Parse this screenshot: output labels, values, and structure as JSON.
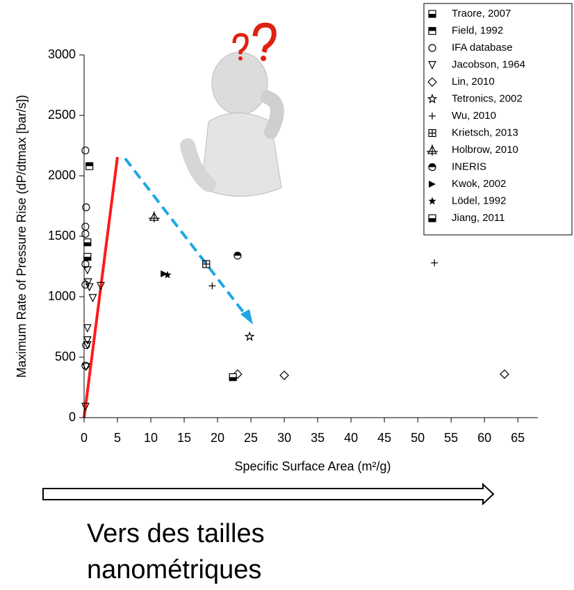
{
  "chart_data": {
    "type": "scatter",
    "x_label": "Specific Surface Area (m²/g)",
    "y_label": "Maximum Rate of Pressure Rise (dP/dtmax [bar/s])",
    "xlim": [
      0,
      68
    ],
    "ylim": [
      0,
      3000
    ],
    "xticks": [
      0,
      5,
      10,
      15,
      20,
      25,
      30,
      35,
      40,
      45,
      50,
      55,
      60,
      65
    ],
    "yticks": [
      0,
      500,
      1000,
      1500,
      2000,
      2500,
      3000
    ],
    "legend": "top-right",
    "series": [
      {
        "name": "Traore, 2007",
        "color": "#000000",
        "marker": "square-half-bottom",
        "x": [
          0.5,
          0.5
        ],
        "values": [
          1450,
          1330
        ]
      },
      {
        "name": "Field, 1992",
        "color": "#000000",
        "marker": "square-half-top",
        "x": [
          0.8
        ],
        "values": [
          2080
        ]
      },
      {
        "name": "IFA database",
        "color": "#000000",
        "marker": "circle",
        "x": [
          0.2,
          0.3,
          0.2,
          0.2,
          0.2,
          0.2,
          0.3,
          0.2
        ],
        "values": [
          2210,
          1740,
          1580,
          1520,
          1270,
          1100,
          600,
          430
        ]
      },
      {
        "name": "Jacobson, 1964",
        "color": "#000000",
        "marker": "triangle-down",
        "x": [
          0.5,
          0.6,
          0.8,
          1.3,
          2.5,
          0.5,
          0.5,
          0.5,
          0.3,
          0.2
        ],
        "values": [
          1220,
          1120,
          1080,
          990,
          1090,
          740,
          640,
          600,
          420,
          90
        ]
      },
      {
        "name": "Lin, 2010",
        "color": "#000000",
        "marker": "diamond",
        "x": [
          23,
          30,
          63
        ],
        "values": [
          360,
          350,
          360
        ]
      },
      {
        "name": "Tetronics, 2002",
        "color": "#000000",
        "marker": "star-open",
        "x": [
          24.8
        ],
        "values": [
          670
        ]
      },
      {
        "name": "Wu, 2010",
        "color": "#000000",
        "marker": "plus",
        "x": [
          19.2,
          52.5
        ],
        "values": [
          1090,
          1280
        ]
      },
      {
        "name": "Krietsch, 2013",
        "color": "#000000",
        "marker": "square-plus",
        "x": [
          18.3
        ],
        "values": [
          1270
        ]
      },
      {
        "name": "Holbrow, 2010",
        "color": "#000000",
        "marker": "triangle-plus",
        "x": [
          10.5
        ],
        "values": [
          1660
        ]
      },
      {
        "name": "INERIS",
        "color": "#000000",
        "marker": "circle-half",
        "x": [
          23
        ],
        "values": [
          1340
        ]
      },
      {
        "name": "Kwok, 2002",
        "color": "#000000",
        "marker": "triangle-right",
        "x": [
          12
        ],
        "values": [
          1190
        ]
      },
      {
        "name": "Lödel, 1992",
        "color": "#000000",
        "marker": "star-filled",
        "x": [
          12.5
        ],
        "values": [
          1180
        ]
      },
      {
        "name": "Jiang, 2011",
        "color": "#000000",
        "marker": "square-half-bottom",
        "x": [
          22.3
        ],
        "values": [
          335
        ]
      }
    ],
    "annotations": [
      "Vers des tailles",
      "nanométriques"
    ]
  }
}
